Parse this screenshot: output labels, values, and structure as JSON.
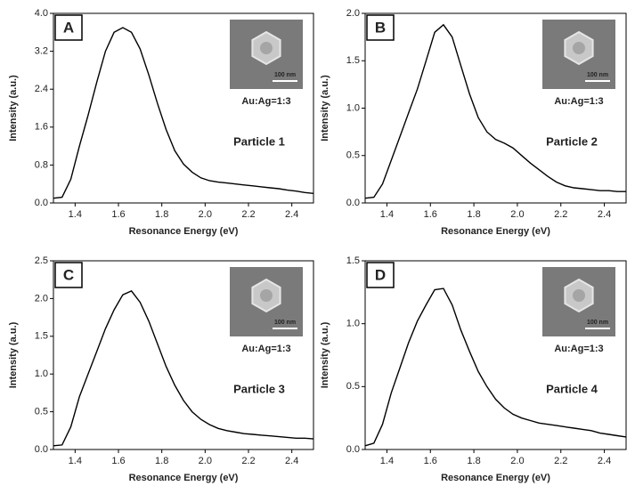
{
  "chart_data": [
    {
      "type": "line",
      "panel_label": "A",
      "annotation": "Particle 1",
      "inset_label": "Au:Ag=1:3",
      "scale_bar_label": "100 nm",
      "xlabel": "Resonance Energy (eV)",
      "ylabel": "Intensity (a.u.)",
      "color": "#000000",
      "x": [
        1.3,
        1.34,
        1.38,
        1.42,
        1.46,
        1.5,
        1.54,
        1.58,
        1.62,
        1.66,
        1.7,
        1.74,
        1.78,
        1.82,
        1.86,
        1.9,
        1.94,
        1.98,
        2.02,
        2.06,
        2.1,
        2.14,
        2.18,
        2.22,
        2.26,
        2.3,
        2.34,
        2.38,
        2.42,
        2.46,
        2.5
      ],
      "values": [
        0.1,
        0.12,
        0.5,
        1.2,
        1.85,
        2.55,
        3.2,
        3.6,
        3.7,
        3.6,
        3.25,
        2.7,
        2.1,
        1.55,
        1.1,
        0.82,
        0.65,
        0.53,
        0.47,
        0.44,
        0.42,
        0.4,
        0.38,
        0.36,
        0.34,
        0.32,
        0.3,
        0.27,
        0.25,
        0.22,
        0.2
      ],
      "xlim": [
        1.3,
        2.5
      ],
      "xticks": [
        1.4,
        1.6,
        1.8,
        {
          "value": 2,
          "label": "2.0"
        },
        2.2,
        2.4
      ],
      "ylim": [
        0,
        4
      ],
      "yticks": [
        {
          "value": 0,
          "label": "0.0"
        },
        0.8,
        1.6,
        2.4,
        3.2,
        {
          "value": 4,
          "label": "4.0"
        }
      ]
    },
    {
      "type": "line",
      "panel_label": "B",
      "annotation": "Particle 2",
      "inset_label": "Au:Ag=1:3",
      "scale_bar_label": "100 nm",
      "xlabel": "Resonance Energy (eV)",
      "ylabel": "Intensity (a.u.)",
      "color": "#000000",
      "x": [
        1.3,
        1.34,
        1.38,
        1.42,
        1.46,
        1.5,
        1.54,
        1.58,
        1.62,
        1.66,
        1.7,
        1.74,
        1.78,
        1.82,
        1.86,
        1.9,
        1.94,
        1.98,
        2.02,
        2.06,
        2.1,
        2.14,
        2.18,
        2.22,
        2.26,
        2.3,
        2.34,
        2.38,
        2.42,
        2.46,
        2.5
      ],
      "values": [
        0.05,
        0.06,
        0.2,
        0.45,
        0.7,
        0.95,
        1.2,
        1.5,
        1.8,
        1.88,
        1.75,
        1.45,
        1.15,
        0.9,
        0.75,
        0.67,
        0.63,
        0.58,
        0.5,
        0.42,
        0.35,
        0.28,
        0.22,
        0.18,
        0.16,
        0.15,
        0.14,
        0.13,
        0.13,
        0.12,
        0.12
      ],
      "xlim": [
        1.3,
        2.5
      ],
      "xticks": [
        1.4,
        1.6,
        1.8,
        {
          "value": 2,
          "label": "2.0"
        },
        2.2,
        2.4
      ],
      "ylim": [
        0,
        2
      ],
      "yticks": [
        {
          "value": 0,
          "label": "0.0"
        },
        0.5,
        {
          "value": 1,
          "label": "1.0"
        },
        1.5,
        {
          "value": 2,
          "label": "2.0"
        }
      ]
    },
    {
      "type": "line",
      "panel_label": "C",
      "annotation": "Particle 3",
      "inset_label": "Au:Ag=1:3",
      "scale_bar_label": "100 nm",
      "xlabel": "Resonance Energy (eV)",
      "ylabel": "Intensity (a.u.)",
      "color": "#000000",
      "x": [
        1.3,
        1.34,
        1.38,
        1.42,
        1.46,
        1.5,
        1.54,
        1.58,
        1.62,
        1.66,
        1.7,
        1.74,
        1.78,
        1.82,
        1.86,
        1.9,
        1.94,
        1.98,
        2.02,
        2.06,
        2.1,
        2.14,
        2.18,
        2.22,
        2.26,
        2.3,
        2.34,
        2.38,
        2.42,
        2.46,
        2.5
      ],
      "values": [
        0.05,
        0.06,
        0.3,
        0.7,
        1.0,
        1.3,
        1.6,
        1.85,
        2.05,
        2.1,
        1.95,
        1.7,
        1.4,
        1.1,
        0.85,
        0.65,
        0.5,
        0.4,
        0.33,
        0.28,
        0.25,
        0.23,
        0.21,
        0.2,
        0.19,
        0.18,
        0.17,
        0.16,
        0.15,
        0.15,
        0.14
      ],
      "xlim": [
        1.3,
        2.5
      ],
      "xticks": [
        1.4,
        1.6,
        1.8,
        {
          "value": 2,
          "label": "2.0"
        },
        2.2,
        2.4
      ],
      "ylim": [
        0,
        2.5
      ],
      "yticks": [
        {
          "value": 0,
          "label": "0.0"
        },
        0.5,
        {
          "value": 1,
          "label": "1.0"
        },
        1.5,
        {
          "value": 2,
          "label": "2.0"
        },
        2.5
      ]
    },
    {
      "type": "line",
      "panel_label": "D",
      "annotation": "Particle 4",
      "inset_label": "Au:Ag=1:3",
      "scale_bar_label": "100 nm",
      "xlabel": "Resonance Energy (eV)",
      "ylabel": "Intensity (a.u.)",
      "color": "#000000",
      "x": [
        1.3,
        1.34,
        1.38,
        1.42,
        1.46,
        1.5,
        1.54,
        1.58,
        1.62,
        1.66,
        1.7,
        1.74,
        1.78,
        1.82,
        1.86,
        1.9,
        1.94,
        1.98,
        2.02,
        2.06,
        2.1,
        2.14,
        2.18,
        2.22,
        2.26,
        2.3,
        2.34,
        2.38,
        2.42,
        2.46,
        2.5
      ],
      "values": [
        0.03,
        0.05,
        0.2,
        0.45,
        0.65,
        0.85,
        1.02,
        1.15,
        1.27,
        1.28,
        1.15,
        0.95,
        0.78,
        0.62,
        0.5,
        0.4,
        0.33,
        0.28,
        0.25,
        0.23,
        0.21,
        0.2,
        0.19,
        0.18,
        0.17,
        0.16,
        0.15,
        0.13,
        0.12,
        0.11,
        0.1
      ],
      "xlim": [
        1.3,
        2.5
      ],
      "xticks": [
        1.4,
        1.6,
        1.8,
        {
          "value": 2,
          "label": "2.0"
        },
        2.2,
        2.4
      ],
      "ylim": [
        0,
        1.5
      ],
      "yticks": [
        {
          "value": 0,
          "label": "0.0"
        },
        0.5,
        {
          "value": 1,
          "label": "1.0"
        },
        1.5
      ]
    }
  ]
}
